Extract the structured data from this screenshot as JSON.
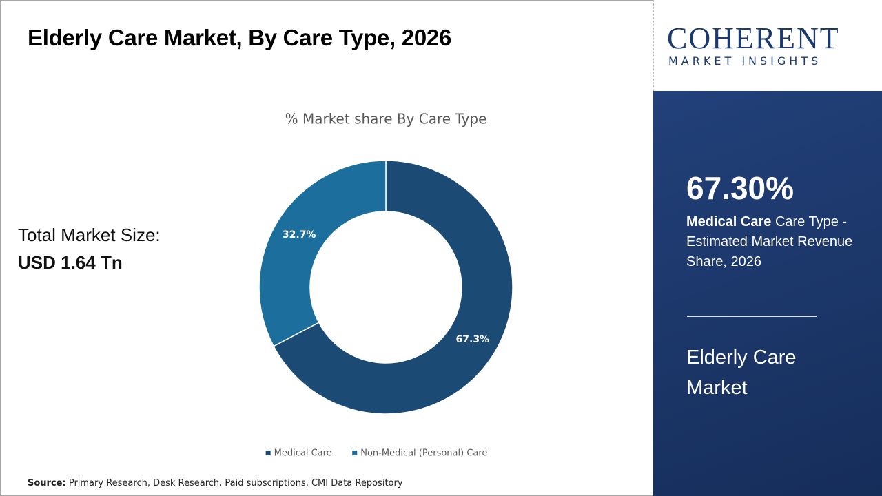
{
  "chart_data": {
    "type": "pie",
    "title": "Elderly Care Market, By Care Type, 2026",
    "subtitle": "% Market share By Care Type",
    "categories": [
      "Medical Care",
      "Non-Medical (Personal) Care"
    ],
    "values": [
      67.3,
      32.7
    ],
    "value_labels": [
      "67.3%",
      "32.7%"
    ],
    "colors": [
      "#1b4a74",
      "#1c6f9c"
    ],
    "donut": true,
    "legend": "bottom"
  },
  "market_size": {
    "label": "Total Market Size:",
    "value": "USD 1.64 Tn"
  },
  "logo": {
    "name": "COHERENT",
    "tagline": "MARKET INSIGHTS"
  },
  "highlight": {
    "figure": "67.30%",
    "segment": "Medical Care",
    "description": "Care Type - Estimated Market Revenue Share, 2026",
    "market": "Elderly Care Market"
  },
  "source": {
    "label": "Source:",
    "text": "Primary Research, Desk Research, Paid subscriptions, CMI Data Repository"
  }
}
